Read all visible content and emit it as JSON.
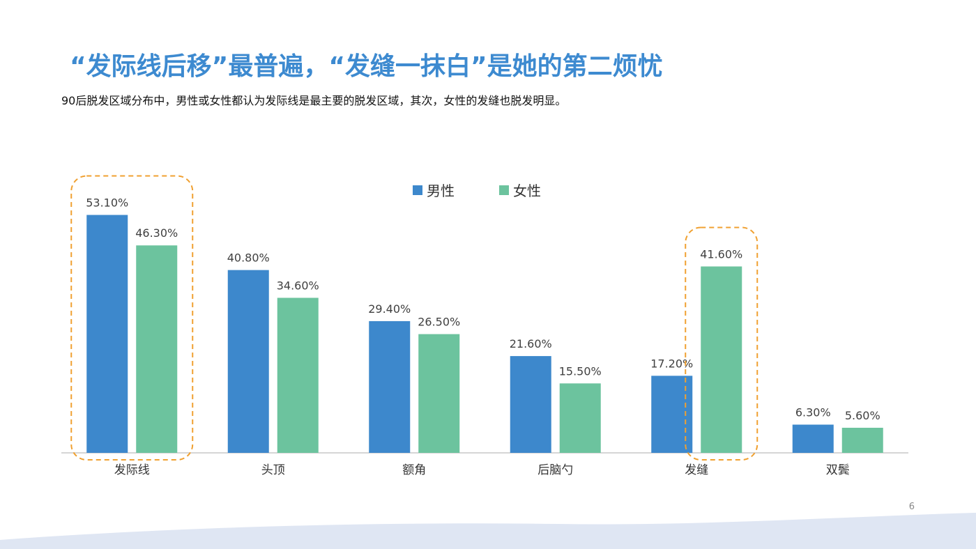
{
  "header": {
    "title": "“发际线后移”最普遍，“发缝一抹白”是她的第二烦忧",
    "subtitle": "90后脱发区域分布中，男性或女性都认为发际线是最主要的脱发区域，其次，女性的发缝也脱发明显。"
  },
  "page_number": "6",
  "colors": {
    "male": "#3d88cc",
    "female": "#6cc39e",
    "highlight": "#f0a030",
    "title": "#3d8ad0"
  },
  "chart_data": {
    "type": "bar",
    "categories": [
      "发际线",
      "头顶",
      "额角",
      "后脑勺",
      "发缝",
      "双鬓"
    ],
    "series": [
      {
        "name": "男性",
        "values": [
          53.1,
          40.8,
          29.4,
          21.6,
          17.2,
          6.3
        ],
        "labels": [
          "53.10%",
          "40.80%",
          "29.40%",
          "21.60%",
          "17.20%",
          "6.30%"
        ]
      },
      {
        "name": "女性",
        "values": [
          46.3,
          34.6,
          26.5,
          15.5,
          41.6,
          5.6
        ],
        "labels": [
          "46.30%",
          "34.60%",
          "26.50%",
          "15.50%",
          "41.60%",
          "5.60%"
        ]
      }
    ],
    "title": "",
    "xlabel": "",
    "ylabel": "",
    "ylim": [
      0,
      60
    ],
    "grid": false,
    "legend": "top-center",
    "highlighted": [
      {
        "category": "发际线",
        "series": [
          "男性",
          "女性"
        ]
      },
      {
        "category": "发缝",
        "series": [
          "女性"
        ]
      }
    ]
  }
}
